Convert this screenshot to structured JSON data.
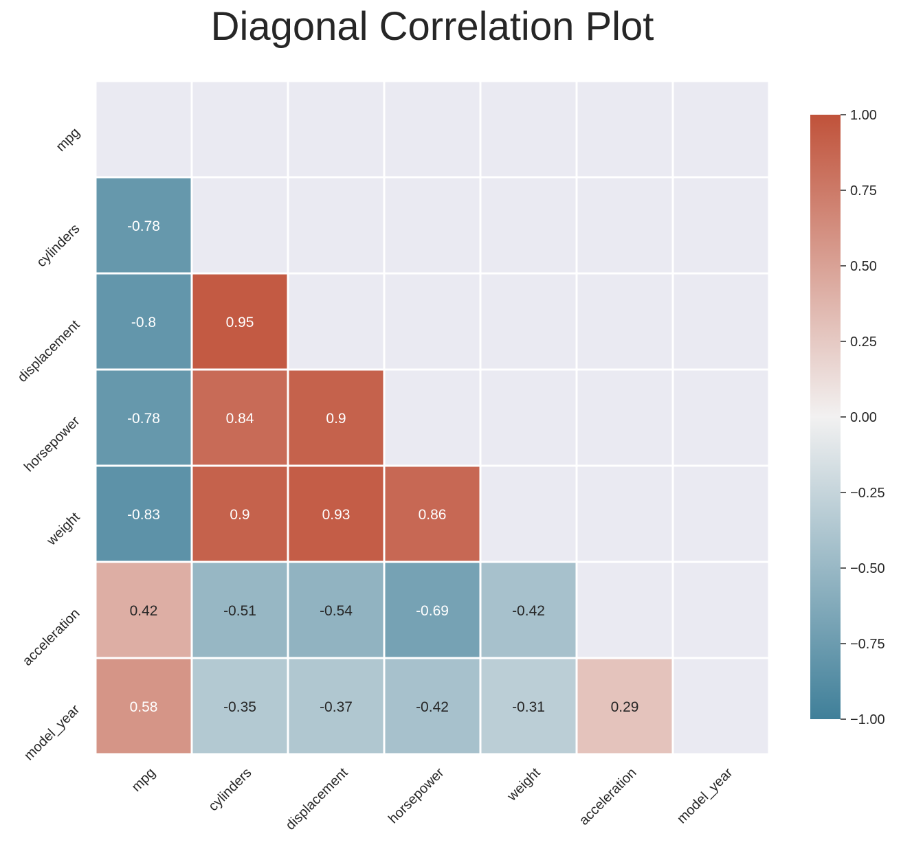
{
  "chart_data": {
    "type": "heatmap",
    "title": "Diagonal Correlation Plot",
    "variables": [
      "mpg",
      "cylinders",
      "displacement",
      "horsepower",
      "weight",
      "acceleration",
      "model_year"
    ],
    "mask": "upper-triangle-including-diagonal",
    "cells": [
      {
        "row": "cylinders",
        "col": "mpg",
        "value": -0.78,
        "label": "-0.78"
      },
      {
        "row": "displacement",
        "col": "mpg",
        "value": -0.8,
        "label": "-0.8"
      },
      {
        "row": "displacement",
        "col": "cylinders",
        "value": 0.95,
        "label": "0.95"
      },
      {
        "row": "horsepower",
        "col": "mpg",
        "value": -0.78,
        "label": "-0.78"
      },
      {
        "row": "horsepower",
        "col": "cylinders",
        "value": 0.84,
        "label": "0.84"
      },
      {
        "row": "horsepower",
        "col": "displacement",
        "value": 0.9,
        "label": "0.9"
      },
      {
        "row": "weight",
        "col": "mpg",
        "value": -0.83,
        "label": "-0.83"
      },
      {
        "row": "weight",
        "col": "cylinders",
        "value": 0.9,
        "label": "0.9"
      },
      {
        "row": "weight",
        "col": "displacement",
        "value": 0.93,
        "label": "0.93"
      },
      {
        "row": "weight",
        "col": "horsepower",
        "value": 0.86,
        "label": "0.86"
      },
      {
        "row": "acceleration",
        "col": "mpg",
        "value": 0.42,
        "label": "0.42"
      },
      {
        "row": "acceleration",
        "col": "cylinders",
        "value": -0.51,
        "label": "-0.51"
      },
      {
        "row": "acceleration",
        "col": "displacement",
        "value": -0.54,
        "label": "-0.54"
      },
      {
        "row": "acceleration",
        "col": "horsepower",
        "value": -0.69,
        "label": "-0.69"
      },
      {
        "row": "acceleration",
        "col": "weight",
        "value": -0.42,
        "label": "-0.42"
      },
      {
        "row": "model_year",
        "col": "mpg",
        "value": 0.58,
        "label": "0.58"
      },
      {
        "row": "model_year",
        "col": "cylinders",
        "value": -0.35,
        "label": "-0.35"
      },
      {
        "row": "model_year",
        "col": "displacement",
        "value": -0.37,
        "label": "-0.37"
      },
      {
        "row": "model_year",
        "col": "horsepower",
        "value": -0.42,
        "label": "-0.42"
      },
      {
        "row": "model_year",
        "col": "weight",
        "value": -0.31,
        "label": "-0.31"
      },
      {
        "row": "model_year",
        "col": "acceleration",
        "value": 0.29,
        "label": "0.29"
      }
    ],
    "colorbar": {
      "range": [
        -1.0,
        1.0
      ],
      "ticks": [
        1.0,
        0.75,
        0.5,
        0.25,
        0.0,
        -0.25,
        -0.5,
        -0.75,
        -1.0
      ],
      "tick_labels": [
        "1.00",
        "0.75",
        "0.50",
        "0.25",
        "0.00",
        "−0.25",
        "−0.50",
        "−0.75",
        "−1.00"
      ]
    },
    "colors": {
      "negative": "#3f7f99",
      "mid": "#f2f1f1",
      "positive": "#c0523a",
      "masked": "#eaeaf2",
      "grid_line": "#ffffff",
      "text_dark": "#262626",
      "text_light": "#ffffff"
    }
  }
}
